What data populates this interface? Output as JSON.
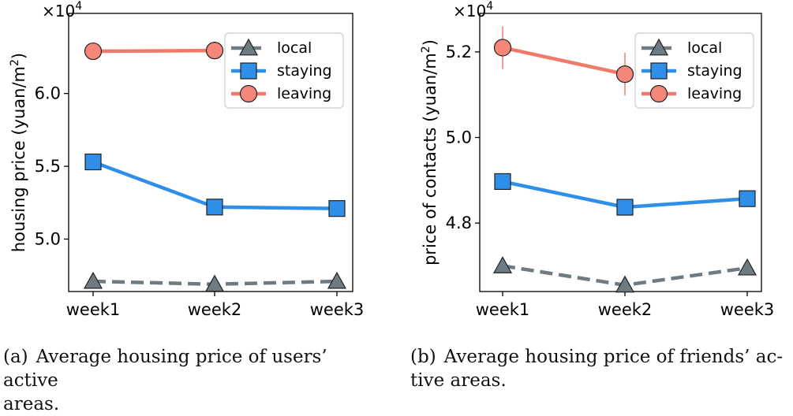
{
  "colors": {
    "local": "#6e7b83",
    "staying": "#2f8fe8",
    "leaving": "#f07a6a",
    "leaving_marker": "#f4877a"
  },
  "chart_data": [
    {
      "type": "line",
      "multiplier_base": "×10",
      "multiplier_exp": "4",
      "ylabel": "housing price (yuan/m",
      "ylabel_sup": "2",
      "ylabel_close": ")",
      "categories": [
        "week1",
        "week2",
        "week3"
      ],
      "ylim": [
        4.64,
        6.55
      ],
      "yticks": [
        5.0,
        5.5,
        6.0
      ],
      "ytick_labels": [
        "5.0",
        "5.5",
        "6.0"
      ],
      "grid": false,
      "legend_position": "upper right",
      "series": [
        {
          "name": "local",
          "key": "local",
          "marker": "triangle",
          "dashed": true,
          "values": [
            4.71,
            4.69,
            4.71
          ],
          "error": [
            0,
            0,
            0
          ]
        },
        {
          "name": "staying",
          "key": "staying",
          "marker": "square",
          "dashed": false,
          "values": [
            5.53,
            5.22,
            5.21
          ],
          "error": [
            0,
            0,
            0
          ]
        },
        {
          "name": "leaving",
          "key": "leaving",
          "marker": "circle",
          "dashed": false,
          "values": [
            6.29,
            6.295,
            null
          ],
          "error": [
            0.05,
            0.05,
            0
          ]
        }
      ],
      "caption_tag": "(a)",
      "caption_line1": "Average housing price of users’ active",
      "caption_line2": "areas."
    },
    {
      "type": "line",
      "multiplier_base": "×10",
      "multiplier_exp": "4",
      "ylabel": "price of contacts (yuan/m",
      "ylabel_sup": "2",
      "ylabel_close": ")",
      "categories": [
        "week1",
        "week2",
        "week3"
      ],
      "ylim": [
        4.64,
        5.29
      ],
      "yticks": [
        4.8,
        5.0,
        5.2
      ],
      "ytick_labels": [
        "4.8",
        "5.0",
        "5.2"
      ],
      "grid": false,
      "legend_position": "upper right",
      "series": [
        {
          "name": "local",
          "key": "local",
          "marker": "triangle",
          "dashed": true,
          "values": [
            4.7,
            4.655,
            4.695
          ],
          "error": [
            0,
            0,
            0
          ]
        },
        {
          "name": "staying",
          "key": "staying",
          "marker": "square",
          "dashed": false,
          "values": [
            4.897,
            4.837,
            4.857
          ],
          "error": [
            0,
            0,
            0
          ]
        },
        {
          "name": "leaving",
          "key": "leaving",
          "marker": "circle",
          "dashed": false,
          "values": [
            5.21,
            5.148,
            null
          ],
          "error": [
            0.05,
            0.05,
            0
          ]
        }
      ],
      "caption_tag": "(b)",
      "caption_line1": "Average housing price of friends’ ac-",
      "caption_line2": "tive areas."
    }
  ]
}
